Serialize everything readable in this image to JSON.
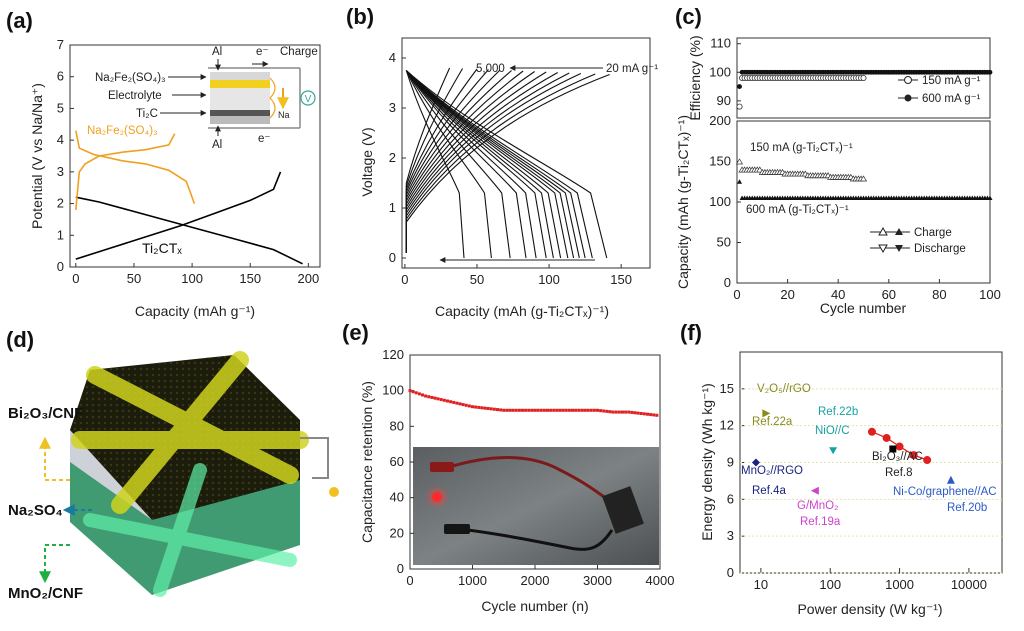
{
  "panel_labels": [
    "(a)",
    "(b)",
    "(c)",
    "(d)",
    "(e)",
    "(f)"
  ],
  "colors": {
    "orange": "#f0a020",
    "red": "#e02020",
    "teal": "#17a2a2",
    "navy": "#1a237e",
    "blue": "#2c59c8",
    "magenta": "#cc44cc",
    "olive": "#8a8a1c",
    "yellow": "#d8d820",
    "green": "#30d080"
  },
  "chart_data": [
    {
      "panel": "(a)",
      "type": "line",
      "xlabel": "Capacity (mAh g⁻¹)",
      "ylabel": "Potential (V vs Na/Na⁺)",
      "xlim": [
        -5,
        210
      ],
      "ylim": [
        0,
        7
      ],
      "xticks": [
        0,
        50,
        100,
        150,
        200
      ],
      "yticks": [
        0,
        1,
        2,
        3,
        4,
        5,
        6,
        7
      ],
      "series": [
        {
          "name": "Ti₂CTₓ",
          "color": "#000000",
          "points": [
            [
              0,
              2.2
            ],
            [
              20,
              2.05
            ],
            [
              50,
              1.75
            ],
            [
              80,
              1.45
            ],
            [
              110,
              1.15
            ],
            [
              140,
              0.85
            ],
            [
              170,
              0.55
            ],
            [
              195,
              0.1
            ]
          ]
        },
        {
          "name": "Ti₂CTₓ",
          "color": "#000000",
          "points": [
            [
              0,
              0.25
            ],
            [
              30,
              0.6
            ],
            [
              60,
              0.95
            ],
            [
              90,
              1.3
            ],
            [
              120,
              1.7
            ],
            [
              150,
              2.1
            ],
            [
              170,
              2.45
            ],
            [
              176,
              3.0
            ]
          ]
        },
        {
          "name": "Na₂Fe₂(SO₄)₃",
          "color": "#f0a020",
          "points": [
            [
              0,
              1.8
            ],
            [
              3,
              3.0
            ],
            [
              8,
              3.25
            ],
            [
              20,
              3.5
            ],
            [
              40,
              3.62
            ],
            [
              60,
              3.7
            ],
            [
              80,
              3.85
            ],
            [
              85,
              4.2
            ]
          ]
        },
        {
          "name": "Na₂Fe₂(SO₄)₃",
          "color": "#f0a020",
          "points": [
            [
              0,
              4.3
            ],
            [
              3,
              3.75
            ],
            [
              15,
              3.55
            ],
            [
              40,
              3.35
            ],
            [
              60,
              3.25
            ],
            [
              80,
              3.05
            ],
            [
              95,
              2.7
            ],
            [
              102,
              2.0
            ]
          ]
        }
      ],
      "annotations": [
        "Na₂Fe₂(SO₄)₃",
        "Ti₂CTₓ"
      ],
      "inset": {
        "labels": [
          "Al",
          "e⁻",
          "Charge",
          "Na₂Fe₂(SO₄)₃",
          "Electrolyte",
          "Ti₂C",
          "V",
          "Na",
          "e⁻",
          "Al"
        ]
      }
    },
    {
      "panel": "(b)",
      "type": "line",
      "xlabel": "Capacity (mAh (g-Ti₂CTₓ)⁻¹)",
      "ylabel": "Voltage (V)",
      "xlim": [
        -2,
        170
      ],
      "ylim": [
        -0.2,
        4.4
      ],
      "xticks": [
        0,
        50,
        100,
        150
      ],
      "yticks": [
        0,
        1,
        2,
        3,
        4
      ],
      "rate_labels": [
        "5,000",
        "20 mA g⁻¹"
      ],
      "charge_end_capacity": [
        31,
        40,
        50,
        58,
        66,
        74,
        82,
        90,
        98,
        106,
        114,
        122,
        132,
        142
      ],
      "discharge_end_capacity": [
        41,
        60,
        73,
        84,
        91,
        98,
        103,
        108,
        113,
        117,
        121,
        125,
        130,
        140
      ]
    },
    {
      "panel": "(c) top",
      "type": "scatter",
      "xlabel": "",
      "ylabel": "Efficiency (%)",
      "xlim": [
        0,
        100
      ],
      "ylim": [
        84,
        112
      ],
      "yticks": [
        90,
        100,
        110
      ],
      "series": [
        {
          "name": "150 mA g⁻¹",
          "marker": "open-circle",
          "x_range": [
            1,
            50
          ],
          "values_first": [
            88,
            98
          ],
          "plateau": 98
        },
        {
          "name": "600 mA g⁻¹",
          "marker": "filled-circle",
          "x_range": [
            1,
            100
          ],
          "values_first": [
            95
          ],
          "plateau": 100
        }
      ]
    },
    {
      "panel": "(c) bottom",
      "type": "scatter",
      "xlabel": "Cycle number",
      "ylabel": "Capacity (mAh (g-Ti₂CTₓ)⁻¹)",
      "xlim": [
        0,
        100
      ],
      "ylim": [
        0,
        200
      ],
      "xticks": [
        0,
        20,
        40,
        60,
        80,
        100
      ],
      "yticks": [
        0,
        50,
        100,
        150,
        200
      ],
      "annotations": [
        "150 mA (g-Ti₂CTₓ)⁻¹",
        "600 mA (g-Ti₂CTₓ)⁻¹"
      ],
      "legend": [
        "Charge",
        "Discharge"
      ],
      "series": [
        {
          "name": "150 mA",
          "x_range": [
            1,
            50
          ],
          "start": 150,
          "values": [
            140,
            137,
            135,
            133,
            131,
            129
          ]
        },
        {
          "name": "600 mA",
          "x_range": [
            1,
            100
          ],
          "start": 125,
          "plateau": 105
        }
      ]
    },
    {
      "panel": "(e)",
      "type": "scatter",
      "xlabel": "Cycle number (n)",
      "ylabel": "Capacitance retention (%)",
      "xlim": [
        0,
        4000
      ],
      "ylim": [
        0,
        120
      ],
      "xticks": [
        0,
        1000,
        2000,
        3000,
        4000
      ],
      "yticks": [
        0,
        20,
        40,
        60,
        80,
        100,
        120
      ],
      "series": [
        {
          "name": "retention",
          "color": "#e02020",
          "x": [
            0,
            250,
            500,
            750,
            1000,
            1250,
            1500,
            1750,
            2000,
            2250,
            2500,
            2750,
            3000,
            3250,
            3500,
            3750,
            4000
          ],
          "y": [
            100,
            97,
            95,
            93,
            91,
            90,
            89,
            89,
            89,
            89,
            89,
            89,
            89,
            88,
            88,
            87,
            86
          ]
        }
      ]
    },
    {
      "panel": "(f)",
      "type": "scatter",
      "xscale": "log",
      "xlabel": "Power density (W kg⁻¹)",
      "ylabel": "Energy density (Wh kg⁻¹)",
      "xlim": [
        5,
        30000
      ],
      "ylim": [
        0,
        18
      ],
      "xticks": [
        "10",
        "100",
        "1000",
        "10000"
      ],
      "yticks": [
        0,
        3,
        6,
        9,
        12,
        15
      ],
      "series": [
        {
          "name": "Bi₂O₃//AC",
          "color": "#e02020",
          "x": [
            400,
            650,
            1000,
            1600,
            2500
          ],
          "y": [
            11.5,
            11.0,
            10.3,
            9.6,
            9.2
          ]
        },
        {
          "name": "V₂O₅//rGO",
          "color": "#8a8a1c",
          "x": [
            12
          ],
          "y": [
            13
          ]
        },
        {
          "name": "NiO//C",
          "color": "#17a2a2",
          "x": [
            110
          ],
          "y": [
            10
          ]
        },
        {
          "name": "MnO₂//RGO",
          "color": "#1a237e",
          "x": [
            8.5
          ],
          "y": [
            9
          ]
        },
        {
          "name": "G/MnO₂",
          "color": "#cc44cc",
          "x": [
            60
          ],
          "y": [
            6.7
          ]
        },
        {
          "name": "Ni-Co/graphene//AC",
          "color": "#2c59c8",
          "x": [
            5500
          ],
          "y": [
            7.6
          ]
        },
        {
          "name": "Bi₂O₃//AC ref",
          "color": "#000000",
          "x": [
            800
          ],
          "y": [
            10.1
          ]
        }
      ],
      "labels": [
        {
          "line1": "V₂O₅//rGO",
          "line2": "Ref.22a"
        },
        {
          "line1": "Ref.22b",
          "line2": "NiO//C"
        },
        {
          "line1": "MnO₂//RGO",
          "line2": "Ref.4a"
        },
        {
          "line1": "G/MnO₂",
          "line2": "Ref.19a"
        },
        {
          "line1": "Bi₂O₃//AC",
          "line2": "Ref.8"
        },
        {
          "line1": "Ni-Co/graphene//AC",
          "line2": "Ref.20b"
        }
      ]
    }
  ],
  "panel_d": {
    "labels": [
      "Bi₂O₃/CNF",
      "Na₂SO₄",
      "MnO₂/CNF"
    ]
  }
}
